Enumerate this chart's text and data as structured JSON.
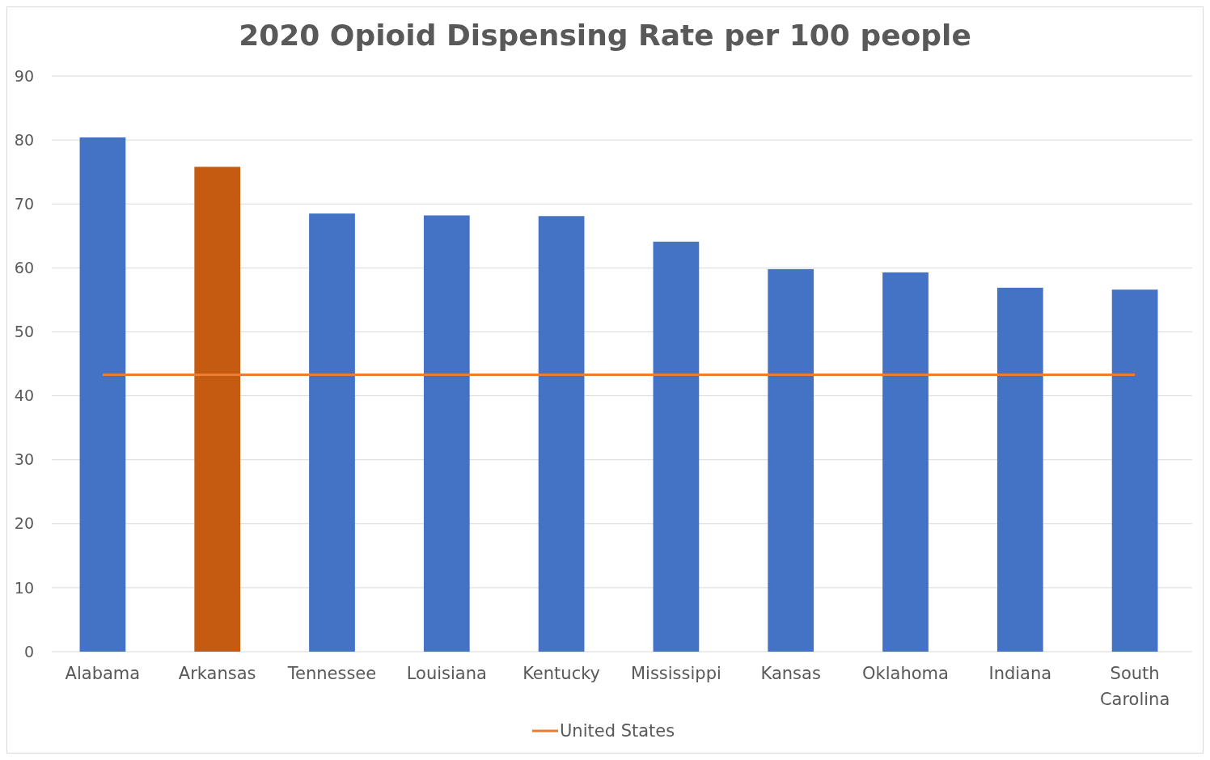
{
  "chart_data": {
    "type": "bar",
    "title": "2020 Opioid Dispensing Rate per 100 people",
    "categories": [
      "Alabama",
      "Arkansas",
      "Tennessee",
      "Louisiana",
      "Kentucky",
      "Mississippi",
      "Kansas",
      "Oklahoma",
      "Indiana",
      "South Carolina"
    ],
    "series": [
      {
        "colors": [
          "#4472c4",
          "#c55a11",
          "#4472c4",
          "#4472c4",
          "#4472c4",
          "#4472c4",
          "#4472c4",
          "#4472c4",
          "#4472c4",
          "#4472c4"
        ],
        "values": [
          80.4,
          75.8,
          68.5,
          68.2,
          68.1,
          64.1,
          59.8,
          59.3,
          56.9,
          56.6
        ]
      },
      {
        "type": "line",
        "name": "United States",
        "color": "#ed7d31",
        "values": [
          43.3,
          43.3,
          43.3,
          43.3,
          43.3,
          43.3,
          43.3,
          43.3,
          43.3,
          43.3
        ]
      }
    ],
    "ylim": [
      0,
      90
    ],
    "yticks": [
      0,
      10,
      20,
      30,
      40,
      50,
      60,
      70,
      80,
      90
    ],
    "grid": "y",
    "legend": "bottom"
  }
}
